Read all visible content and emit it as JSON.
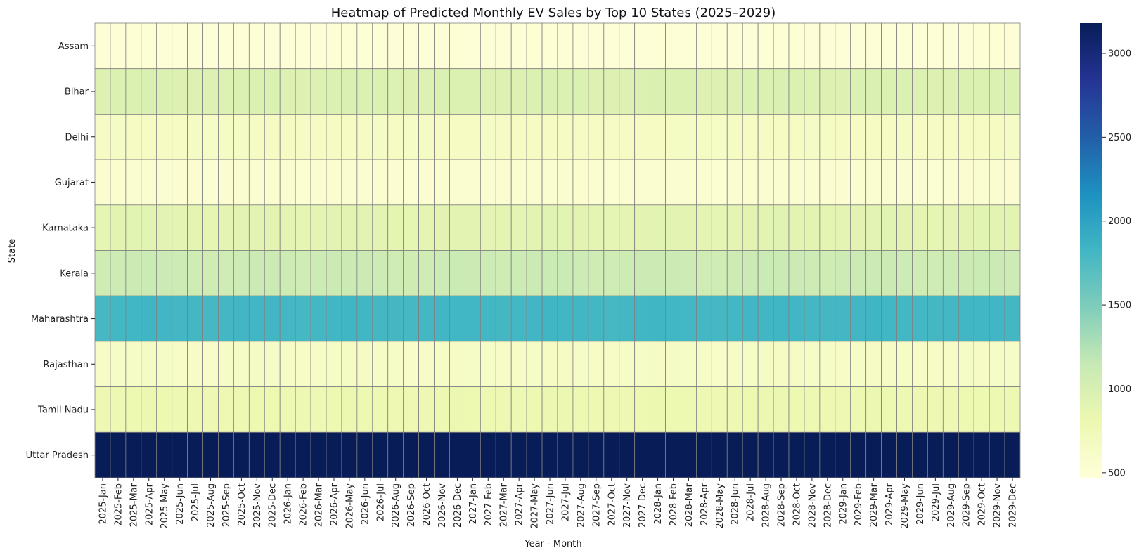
{
  "chart_data": {
    "type": "heatmap",
    "title": "Heatmap of Predicted Monthly EV Sales by Top 10 States (2025–2029)",
    "xlabel": "Year - Month",
    "ylabel": "State",
    "rows": [
      "Assam",
      "Bihar",
      "Delhi",
      "Gujarat",
      "Karnataka",
      "Kerala",
      "Maharashtra",
      "Rajasthan",
      "Tamil Nadu",
      "Uttar Pradesh"
    ],
    "columns": [
      "2025-Jan",
      "2025-Feb",
      "2025-Mar",
      "2025-Apr",
      "2025-May",
      "2025-Jun",
      "2025-Jul",
      "2025-Aug",
      "2025-Sep",
      "2025-Oct",
      "2025-Nov",
      "2025-Dec",
      "2026-Jan",
      "2026-Feb",
      "2026-Mar",
      "2026-Apr",
      "2026-May",
      "2026-Jun",
      "2026-Jul",
      "2026-Aug",
      "2026-Sep",
      "2026-Oct",
      "2026-Nov",
      "2026-Dec",
      "2027-Jan",
      "2027-Feb",
      "2027-Mar",
      "2027-Apr",
      "2027-May",
      "2027-Jun",
      "2027-Jul",
      "2027-Aug",
      "2027-Sep",
      "2027-Oct",
      "2027-Nov",
      "2027-Dec",
      "2028-Jan",
      "2028-Feb",
      "2028-Mar",
      "2028-Apr",
      "2028-May",
      "2028-Jun",
      "2028-Jul",
      "2028-Aug",
      "2028-Sep",
      "2028-Oct",
      "2028-Nov",
      "2028-Dec",
      "2029-Jan",
      "2029-Feb",
      "2029-Mar",
      "2029-Apr",
      "2029-May",
      "2029-Jun",
      "2029-Jul",
      "2029-Aug",
      "2029-Sep",
      "2029-Oct",
      "2029-Nov",
      "2029-Dec"
    ],
    "row_values": [
      {
        "state": "Assam",
        "values": [
          500,
          505,
          510,
          512,
          508,
          503,
          500,
          498,
          502,
          507,
          510,
          506,
          502,
          498,
          504,
          510,
          513,
          509,
          505,
          500,
          498,
          503,
          508,
          511,
          507,
          502,
          500,
          505,
          510,
          514,
          511,
          506,
          501,
          499,
          503,
          508,
          512,
          509,
          504,
          500,
          497,
          501,
          506,
          510,
          513,
          509,
          504,
          500,
          502,
          507,
          511,
          508,
          503,
          500,
          498,
          502,
          507,
          510,
          509,
          505
        ]
      },
      {
        "state": "Bihar",
        "values": [
          950,
          965,
          975,
          980,
          972,
          962,
          955,
          948,
          958,
          968,
          976,
          970,
          960,
          952,
          962,
          972,
          980,
          976,
          966,
          956,
          950,
          958,
          968,
          978,
          972,
          962,
          955,
          962,
          972,
          982,
          978,
          968,
          958,
          952,
          960,
          970,
          980,
          976,
          966,
          958,
          952,
          960,
          970,
          978,
          982,
          974,
          964,
          956,
          960,
          970,
          980,
          976,
          966,
          958,
          954,
          962,
          972,
          978,
          974,
          966
        ]
      },
      {
        "state": "Delhi",
        "values": [
          640,
          650,
          658,
          662,
          656,
          648,
          642,
          636,
          644,
          652,
          660,
          655,
          648,
          640,
          648,
          656,
          664,
          660,
          652,
          644,
          638,
          646,
          654,
          662,
          658,
          650,
          642,
          648,
          656,
          665,
          662,
          654,
          646,
          640,
          646,
          654,
          662,
          660,
          652,
          644,
          638,
          646,
          654,
          662,
          666,
          660,
          652,
          644,
          646,
          654,
          662,
          660,
          652,
          646,
          640,
          646,
          654,
          660,
          658,
          652
        ]
      },
      {
        "state": "Gujarat",
        "values": [
          545,
          552,
          558,
          562,
          556,
          550,
          545,
          540,
          546,
          552,
          558,
          554,
          548,
          542,
          548,
          554,
          560,
          557,
          551,
          545,
          540,
          546,
          552,
          558,
          555,
          549,
          544,
          548,
          554,
          561,
          558,
          552,
          546,
          541,
          546,
          552,
          558,
          556,
          550,
          544,
          540,
          545,
          551,
          557,
          561,
          556,
          550,
          545,
          546,
          552,
          558,
          556,
          550,
          545,
          541,
          546,
          552,
          557,
          555,
          550
        ]
      },
      {
        "state": "Karnataka",
        "values": [
          880,
          895,
          905,
          910,
          902,
          892,
          885,
          878,
          888,
          898,
          906,
          900,
          890,
          882,
          892,
          902,
          910,
          906,
          896,
          886,
          880,
          888,
          898,
          908,
          902,
          892,
          885,
          892,
          902,
          912,
          908,
          898,
          888,
          882,
          890,
          900,
          910,
          906,
          896,
          888,
          882,
          890,
          900,
          908,
          912,
          904,
          894,
          886,
          890,
          900,
          910,
          906,
          896,
          888,
          884,
          892,
          902,
          908,
          904,
          896
        ]
      },
      {
        "state": "Kerala",
        "values": [
          1080,
          1095,
          1105,
          1110,
          1102,
          1092,
          1085,
          1078,
          1088,
          1098,
          1106,
          1100,
          1090,
          1082,
          1092,
          1102,
          1110,
          1106,
          1096,
          1086,
          1080,
          1088,
          1098,
          1108,
          1102,
          1092,
          1085,
          1092,
          1102,
          1112,
          1108,
          1098,
          1088,
          1082,
          1090,
          1100,
          1110,
          1106,
          1096,
          1088,
          1082,
          1090,
          1100,
          1108,
          1112,
          1104,
          1094,
          1086,
          1090,
          1100,
          1110,
          1106,
          1096,
          1088,
          1084,
          1092,
          1102,
          1108,
          1104,
          1096
        ]
      },
      {
        "state": "Maharashtra",
        "values": [
          1800,
          1815,
          1825,
          1830,
          1822,
          1812,
          1805,
          1798,
          1808,
          1818,
          1826,
          1820,
          1810,
          1802,
          1812,
          1822,
          1830,
          1826,
          1816,
          1806,
          1800,
          1808,
          1818,
          1828,
          1822,
          1812,
          1805,
          1812,
          1822,
          1832,
          1828,
          1818,
          1808,
          1802,
          1810,
          1820,
          1830,
          1826,
          1816,
          1808,
          1802,
          1810,
          1820,
          1828,
          1832,
          1824,
          1814,
          1806,
          1810,
          1820,
          1830,
          1826,
          1816,
          1808,
          1804,
          1812,
          1822,
          1828,
          1824,
          1816
        ]
      },
      {
        "state": "Rajasthan",
        "values": [
          620,
          630,
          638,
          642,
          636,
          628,
          622,
          616,
          624,
          632,
          640,
          635,
          628,
          620,
          628,
          636,
          644,
          640,
          632,
          624,
          618,
          626,
          634,
          642,
          638,
          630,
          622,
          628,
          636,
          645,
          642,
          634,
          626,
          620,
          626,
          634,
          642,
          640,
          632,
          624,
          618,
          626,
          634,
          642,
          646,
          640,
          632,
          624,
          626,
          634,
          642,
          640,
          632,
          626,
          620,
          626,
          634,
          640,
          638,
          632
        ]
      },
      {
        "state": "Tamil Nadu",
        "values": [
          790,
          802,
          810,
          814,
          808,
          800,
          794,
          788,
          796,
          804,
          812,
          807,
          800,
          792,
          800,
          808,
          816,
          812,
          804,
          796,
          790,
          798,
          806,
          814,
          810,
          802,
          794,
          800,
          808,
          817,
          814,
          806,
          798,
          792,
          798,
          806,
          814,
          812,
          804,
          796,
          790,
          798,
          806,
          814,
          818,
          812,
          804,
          796,
          798,
          806,
          814,
          812,
          804,
          798,
          792,
          798,
          806,
          812,
          810,
          804
        ]
      },
      {
        "state": "Uttar Pradesh",
        "values": [
          3180,
          3180,
          3180,
          3180,
          3180,
          3180,
          3180,
          3180,
          3180,
          3180,
          3180,
          3180,
          3180,
          3180,
          3180,
          3180,
          3180,
          3180,
          3180,
          3180,
          3180,
          3180,
          3180,
          3180,
          3180,
          3180,
          3180,
          3180,
          3180,
          3180,
          3180,
          3180,
          3180,
          3180,
          3180,
          3180,
          3180,
          3180,
          3180,
          3180,
          3180,
          3180,
          3180,
          3180,
          3180,
          3180,
          3180,
          3180,
          3180,
          3180,
          3180,
          3180,
          3180,
          3180,
          3180,
          3180,
          3180,
          3180,
          3180,
          3180
        ]
      }
    ],
    "colorbar": {
      "colormap": "YlGnBu",
      "range": [
        470,
        3180
      ],
      "ticks": [
        500,
        1000,
        1500,
        2000,
        2500,
        3000
      ]
    },
    "grid": true,
    "cell_border_color": "#808080"
  }
}
